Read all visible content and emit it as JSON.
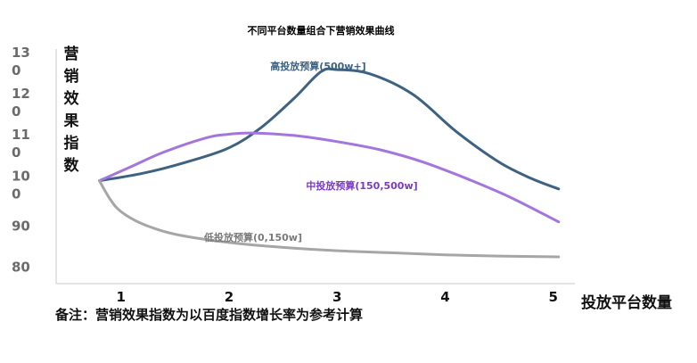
{
  "chart_data": {
    "type": "line",
    "title": "不同平台数量组合下营销效果曲线",
    "ylabel": "营销效果指数",
    "xlabel": "投放平台数量",
    "x_ticks": [
      "1",
      "2",
      "3",
      "4",
      "5"
    ],
    "y_ticks": [
      {
        "value": 130,
        "lines": [
          "13",
          "0"
        ]
      },
      {
        "value": 120,
        "lines": [
          "12",
          "0"
        ]
      },
      {
        "value": 110,
        "lines": [
          "11",
          "0"
        ]
      },
      {
        "value": 100,
        "lines": [
          "10",
          "0"
        ]
      },
      {
        "value": 90,
        "lines": [
          "90"
        ]
      },
      {
        "value": 80,
        "lines": [
          "80"
        ]
      }
    ],
    "ylim": [
      76,
      133
    ],
    "xlim": [
      0.4,
      5.2
    ],
    "series": [
      {
        "name": "高投放预算(500w+]",
        "color": "#3e6282",
        "x": [
          0.8,
          1.2,
          1.6,
          2.0,
          2.3,
          2.6,
          2.85,
          3.0,
          3.3,
          3.7,
          4.1,
          4.5,
          4.8,
          5.05
        ],
        "y": [
          101,
          102.8,
          105.5,
          109,
          114,
          121,
          127.5,
          128,
          127,
          122,
          113,
          105.5,
          101.5,
          99
        ]
      },
      {
        "name": "中投放预算(150,500w]",
        "color": "#a276dc",
        "x": [
          0.8,
          1.1,
          1.4,
          1.8,
          2.0,
          2.2,
          2.6,
          3.0,
          3.4,
          3.8,
          4.2,
          4.6,
          5.05
        ],
        "y": [
          101,
          104.5,
          108,
          111.5,
          112.3,
          112.6,
          112,
          110.5,
          108.5,
          105.5,
          101.5,
          97,
          91
        ]
      },
      {
        "name": "低投放预算(0,150w]",
        "color": "#a6a6a6",
        "x": [
          0.8,
          0.9,
          1.0,
          1.2,
          1.5,
          2.0,
          2.5,
          3.0,
          3.5,
          4.0,
          4.5,
          5.05
        ],
        "y": [
          101,
          96.5,
          93.5,
          90.5,
          88,
          86,
          84.8,
          84,
          83.5,
          83,
          82.7,
          82.5
        ]
      }
    ],
    "series_labels": [
      "高投放预算(500w+]",
      "中投放预算(150,500w]",
      "低投放预算(0,150w]"
    ],
    "note": "备注：营销效果指数为以百度指数增长率为参考计算",
    "grid": false,
    "legend": "none"
  }
}
